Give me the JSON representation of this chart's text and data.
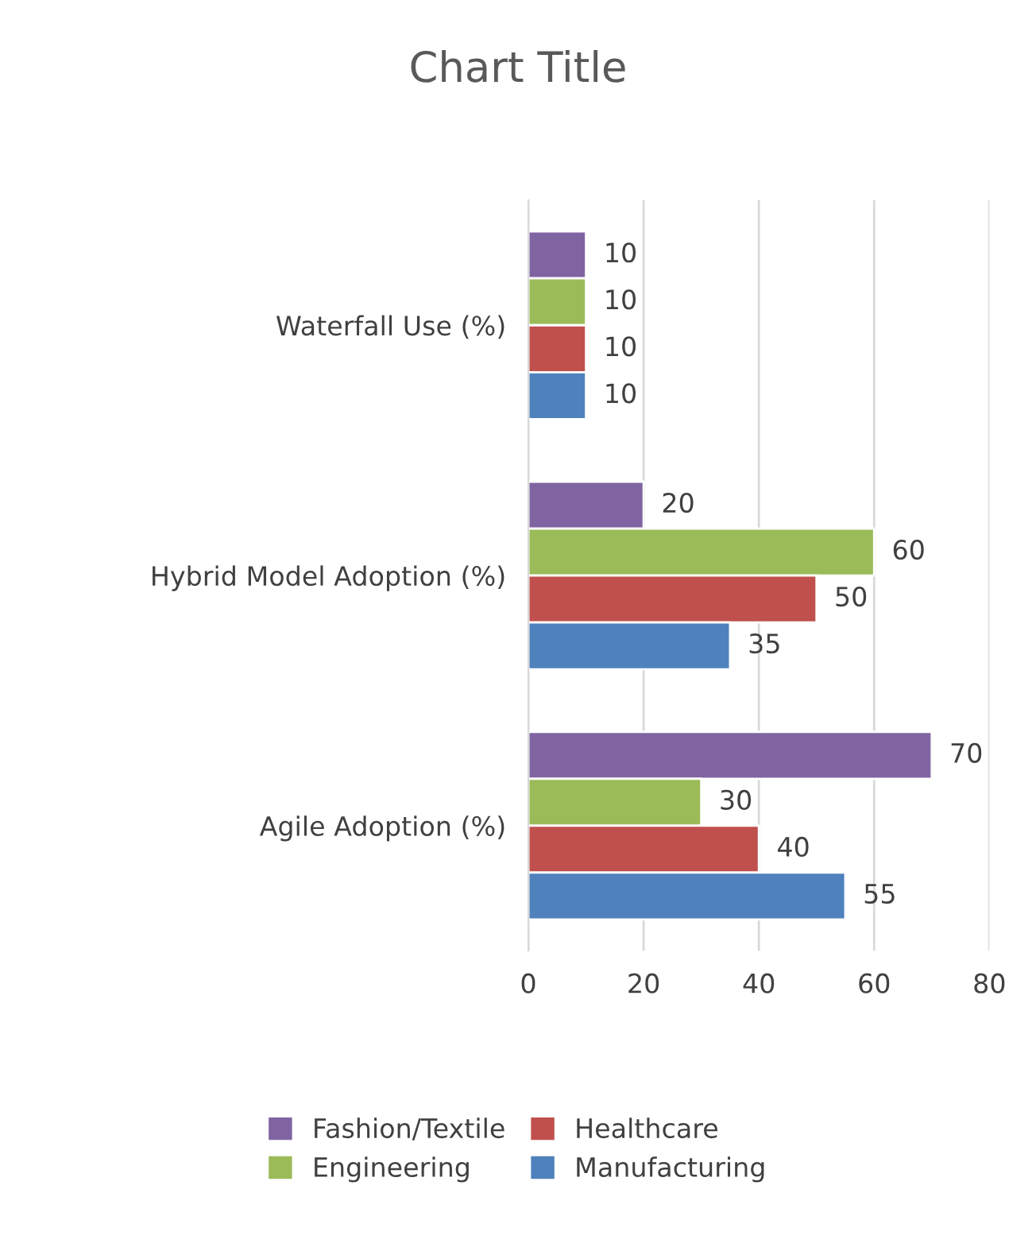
{
  "chart_data": {
    "type": "bar",
    "orientation": "horizontal",
    "title": "Chart Title",
    "categories": [
      "Waterfall Use (%)",
      "Hybrid Model Adoption (%)",
      "Agile Adoption (%)"
    ],
    "series": [
      {
        "name": "Fashion/Textile",
        "color": "#8064a2",
        "values": [
          10,
          20,
          70
        ]
      },
      {
        "name": "Engineering",
        "color": "#9bbb59",
        "values": [
          10,
          60,
          30
        ]
      },
      {
        "name": "Healthcare",
        "color": "#c0504d",
        "values": [
          10,
          50,
          40
        ]
      },
      {
        "name": "Manufacturing",
        "color": "#4f81bd",
        "values": [
          10,
          35,
          55
        ]
      }
    ],
    "xlim": [
      0,
      80
    ],
    "xticks": [
      0,
      20,
      40,
      60,
      80
    ],
    "grid": "x",
    "data_labels": true,
    "legend": "bottom"
  }
}
